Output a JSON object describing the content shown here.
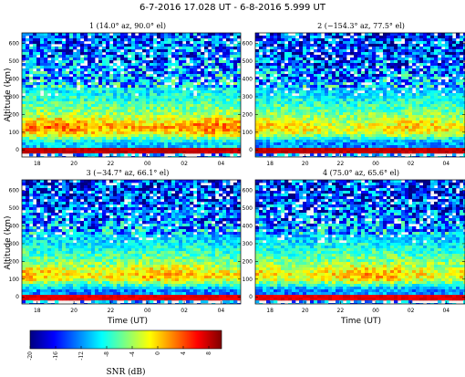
{
  "figure": {
    "title": "6-7-2016 17.028 UT - 6-8-2016 5.999 UT"
  },
  "colormap": {
    "stops": [
      "#00007f",
      "#0000ff",
      "#007fff",
      "#00ffff",
      "#7fff7f",
      "#ffff00",
      "#ff7f00",
      "#ff0000",
      "#7f0000"
    ]
  },
  "chart_data": [
    {
      "type": "heatmap",
      "panel": 1,
      "title": "1 (14.0°  az, 90.0°  el)",
      "xlabel": "",
      "ylabel": "Altitude (km)",
      "x_tick_labels": [
        "18",
        "20",
        "22",
        "00",
        "02",
        "04"
      ],
      "y_ticks": [
        0,
        100,
        200,
        300,
        400,
        500,
        600
      ],
      "ylim": [
        -40,
        660
      ],
      "profile_snr_db": {
        "altitude_km": [
          40,
          100,
          130,
          200,
          300,
          400,
          500,
          600
        ],
        "snr_db": [
          -10,
          0,
          2,
          -4,
          -8,
          -11,
          -13,
          -14
        ]
      },
      "clutter_band_snr_db": 8
    },
    {
      "type": "heatmap",
      "panel": 2,
      "title": "2 (−154.3°  az, 77.5°  el)",
      "xlabel": "",
      "ylabel": "",
      "x_tick_labels": [
        "18",
        "20",
        "22",
        "00",
        "02",
        "04"
      ],
      "y_ticks": [
        0,
        100,
        200,
        300,
        400,
        500,
        600
      ],
      "ylim": [
        -40,
        660
      ],
      "profile_snr_db": {
        "altitude_km": [
          40,
          100,
          130,
          200,
          300,
          400,
          500,
          600
        ],
        "snr_db": [
          -12,
          -2,
          -1,
          -5,
          -9,
          -12,
          -14,
          -15
        ]
      },
      "clutter_band_snr_db": 8
    },
    {
      "type": "heatmap",
      "panel": 3,
      "title": "3 (−34.7°  az, 66.1°  el)",
      "xlabel": "Time (UT)",
      "ylabel": "Altitude (km)",
      "x_tick_labels": [
        "18",
        "20",
        "22",
        "00",
        "02",
        "04"
      ],
      "y_ticks": [
        0,
        100,
        200,
        300,
        400,
        500,
        600
      ],
      "ylim": [
        -40,
        660
      ],
      "profile_snr_db": {
        "altitude_km": [
          40,
          100,
          130,
          200,
          300,
          400,
          500,
          600
        ],
        "snr_db": [
          -12,
          -1,
          0,
          -5,
          -9,
          -12,
          -14,
          -15
        ]
      },
      "clutter_band_snr_db": 7
    },
    {
      "type": "heatmap",
      "panel": 4,
      "title": "4 (75.0°  az, 65.6°  el)",
      "xlabel": "Time (UT)",
      "ylabel": "",
      "x_tick_labels": [
        "18",
        "20",
        "22",
        "00",
        "02",
        "04"
      ],
      "y_ticks": [
        0,
        100,
        200,
        300,
        400,
        500,
        600
      ],
      "ylim": [
        -40,
        660
      ],
      "profile_snr_db": {
        "altitude_km": [
          40,
          100,
          130,
          200,
          300,
          400,
          500,
          600
        ],
        "snr_db": [
          -12,
          -1,
          0,
          -5,
          -9,
          -12,
          -14,
          -15
        ]
      },
      "clutter_band_snr_db": 7
    },
    {
      "type": "colorbar",
      "label": "SNR (dB)",
      "range": [
        -20,
        10
      ],
      "ticks": [
        -20,
        -16,
        -12,
        -8,
        -4,
        0,
        4,
        8
      ]
    }
  ]
}
